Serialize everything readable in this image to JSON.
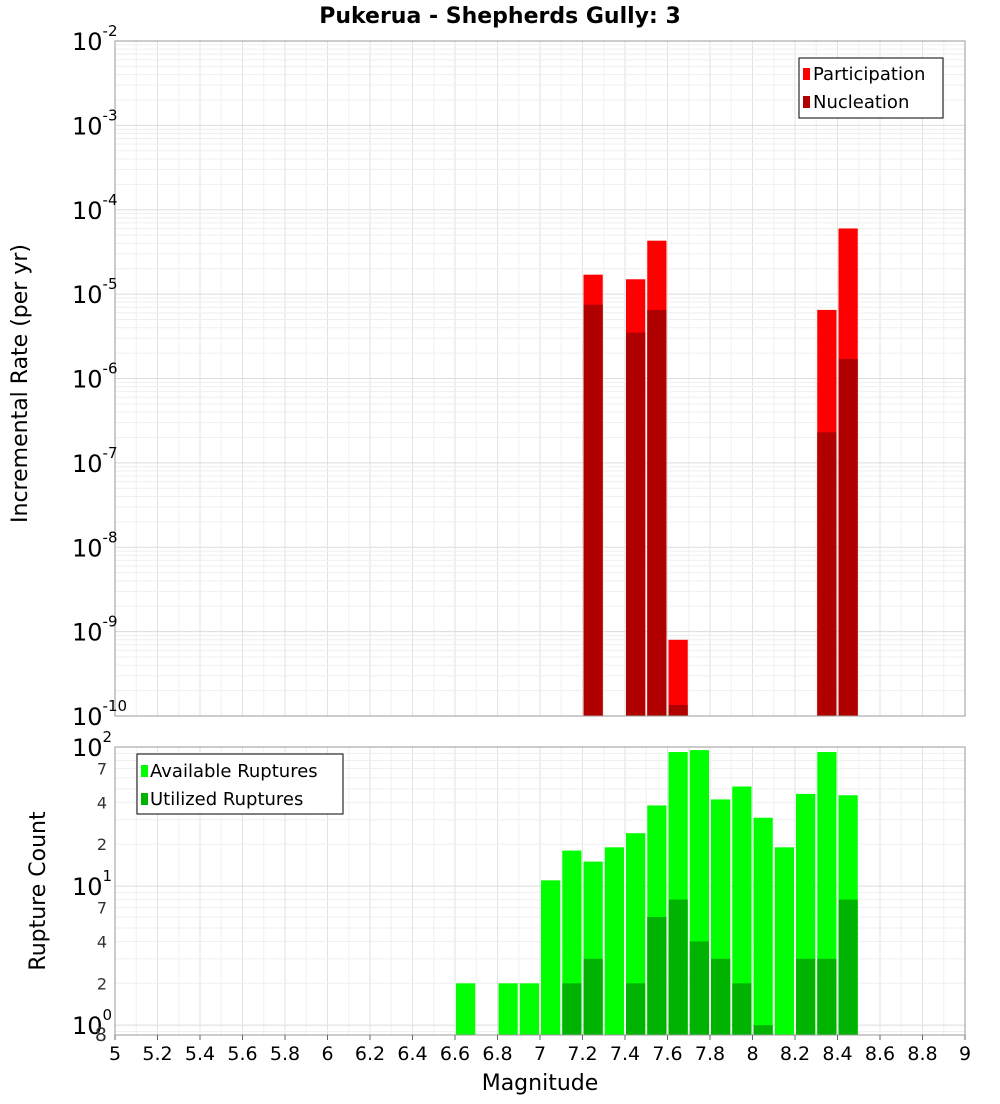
{
  "chart_data": [
    {
      "type": "bar",
      "title": "Pukerua - Shepherds Gully: 3",
      "ylabel": "Incremental Rate (per yr)",
      "xlabel": "",
      "y_scale": "log",
      "ylim": [
        1e-10,
        0.01
      ],
      "xlim": [
        5,
        9
      ],
      "bar_width": 0.1,
      "legend_position": "top-right",
      "y_decades": [
        "-10",
        "-9",
        "-8",
        "-7",
        "-6",
        "-5",
        "-4",
        "-3",
        "-2"
      ],
      "series": [
        {
          "name": "Participation",
          "color": "#ff0000",
          "x": [
            7.25,
            7.45,
            7.55,
            7.65,
            8.35,
            8.45
          ],
          "values": [
            1.7e-05,
            1.5e-05,
            4.3e-05,
            8e-10,
            6.5e-06,
            6e-05
          ]
        },
        {
          "name": "Nucleation",
          "color": "#b00000",
          "x": [
            7.25,
            7.45,
            7.55,
            7.65,
            8.35,
            8.45
          ],
          "values": [
            7.5e-06,
            3.5e-06,
            6.5e-06,
            1.35e-10,
            2.3e-07,
            1.7e-06
          ]
        }
      ],
      "grid": true
    },
    {
      "type": "bar",
      "title": "",
      "ylabel": "Rupture Count",
      "xlabel": "Magnitude",
      "y_scale": "log",
      "ylim": [
        0.85,
        100
      ],
      "xlim": [
        5,
        9
      ],
      "bar_width": 0.1,
      "legend_position": "top-left",
      "x_ticks": [
        "5",
        "5.2",
        "5.4",
        "5.6",
        "5.8",
        "6",
        "6.2",
        "6.4",
        "6.6",
        "6.8",
        "7",
        "7.2",
        "7.4",
        "7.6",
        "7.8",
        "8",
        "8.2",
        "8.4",
        "8.6",
        "8.8",
        "9"
      ],
      "y_decades": [
        "0",
        "1",
        "2"
      ],
      "y_minor_labels": [
        "2",
        "4",
        "7",
        "2",
        "4",
        "7"
      ],
      "y_bottom_label": "8",
      "series": [
        {
          "name": "Available Ruptures",
          "color": "#00ff00",
          "x": [
            6.65,
            6.85,
            6.95,
            7.05,
            7.15,
            7.25,
            7.35,
            7.45,
            7.55,
            7.65,
            7.75,
            7.85,
            7.95,
            8.05,
            8.15,
            8.25,
            8.35,
            8.45
          ],
          "values": [
            2,
            2,
            2,
            11,
            18,
            15,
            19,
            24,
            38,
            92,
            95,
            42,
            52,
            31,
            19,
            46,
            92,
            45
          ]
        },
        {
          "name": "Utilized Ruptures",
          "color": "#00b300",
          "x": [
            7.15,
            7.25,
            7.45,
            7.55,
            7.65,
            7.75,
            7.85,
            7.95,
            8.05,
            8.25,
            8.35,
            8.45
          ],
          "values": [
            2,
            3,
            2,
            6,
            8,
            4,
            3,
            2,
            1,
            3,
            3,
            8
          ]
        }
      ],
      "grid": true
    }
  ]
}
